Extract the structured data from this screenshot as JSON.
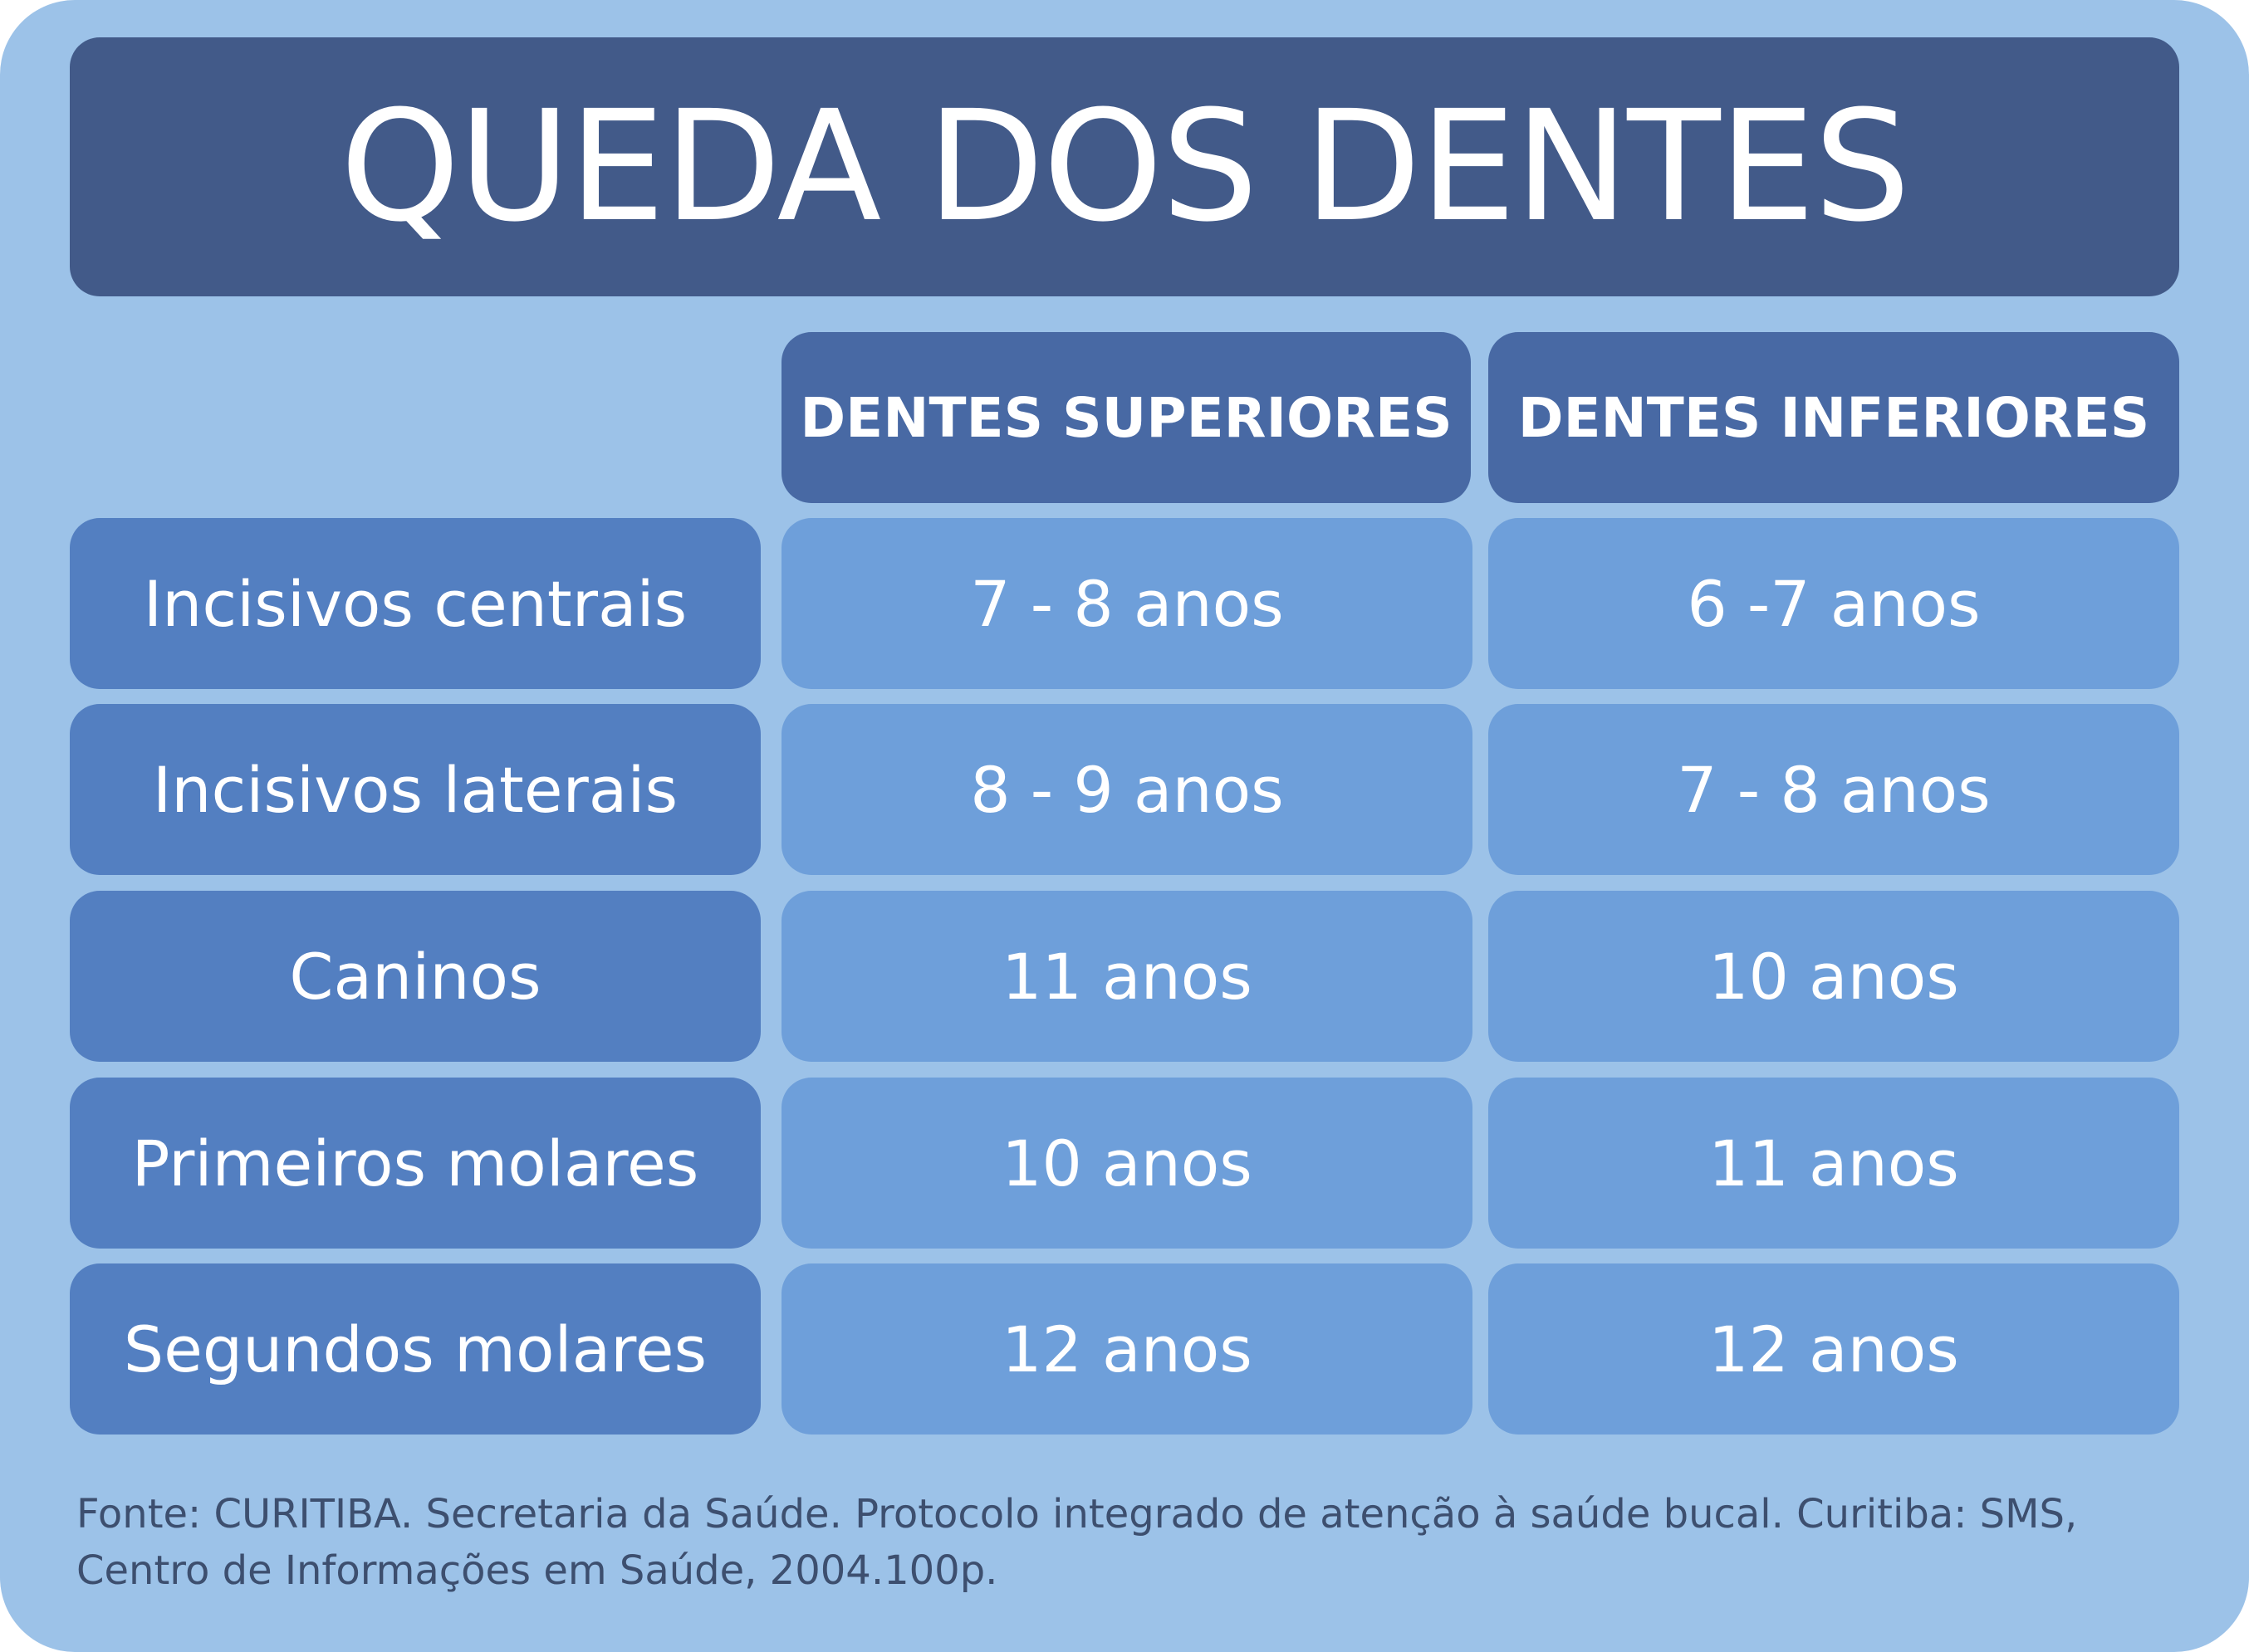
{
  "title": "QUEDA DOS DENTES",
  "headers": {
    "upper": "DENTES SUPERIORES",
    "lower": "DENTES INFERIORES"
  },
  "rows": [
    {
      "tooth": "Incisivos centrais",
      "upper": "7 - 8 anos",
      "lower": "6 -7 anos"
    },
    {
      "tooth": "Incisivos laterais",
      "upper": "8 - 9 anos",
      "lower": "7 - 8 anos"
    },
    {
      "tooth": "Caninos",
      "upper": "11 anos",
      "lower": "10 anos"
    },
    {
      "tooth": "Primeiros molares",
      "upper": "10 anos",
      "lower": "11 anos"
    },
    {
      "tooth": "Segundos molares",
      "upper": "12 anos",
      "lower": "12 anos"
    }
  ],
  "source": {
    "line1": "Fonte: CURITIBA. Secretaria da Saúde. Protocolo integrado de atenção à saúde bucal. Curitiba: SMS,",
    "line2": "Centro de Informações em Saúde, 2004.100p."
  },
  "colors": {
    "background": "#9cc2e8",
    "title_bar": "#425a89",
    "header_cell": "#4869a4",
    "label_cell": "#537fc1",
    "value_cell": "#6e9fda",
    "text": "#ffffff",
    "source_text": "#3d4f6f"
  }
}
